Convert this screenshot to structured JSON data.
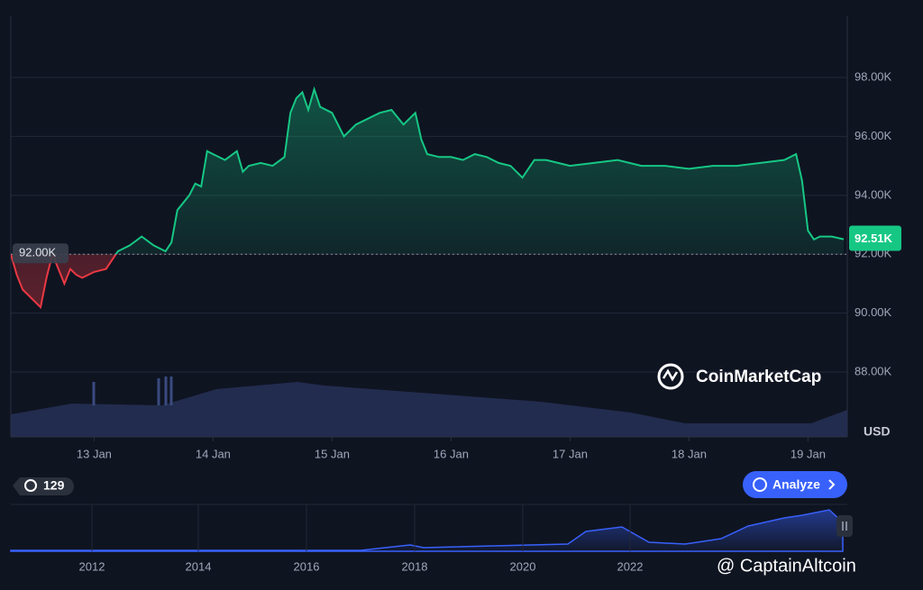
{
  "chart_data": {
    "type": "line",
    "x": [
      12.3,
      12.35,
      12.4,
      12.45,
      12.5,
      12.55,
      12.6,
      12.65,
      12.7,
      12.75,
      12.8,
      12.85,
      12.9,
      13.0,
      13.1,
      13.2,
      13.3,
      13.4,
      13.5,
      13.6,
      13.65,
      13.7,
      13.8,
      13.85,
      13.9,
      13.95,
      14.0,
      14.1,
      14.2,
      14.25,
      14.3,
      14.4,
      14.5,
      14.6,
      14.65,
      14.7,
      14.75,
      14.8,
      14.85,
      14.9,
      15.0,
      15.1,
      15.2,
      15.3,
      15.4,
      15.5,
      15.6,
      15.7,
      15.75,
      15.8,
      15.9,
      16.0,
      16.1,
      16.2,
      16.3,
      16.4,
      16.5,
      16.6,
      16.7,
      16.8,
      16.9,
      17.0,
      17.2,
      17.4,
      17.6,
      17.8,
      18.0,
      18.2,
      18.4,
      18.6,
      18.8,
      18.9,
      18.95,
      19.0,
      19.05,
      19.1,
      19.2,
      19.3
    ],
    "values": [
      92000,
      91300,
      90800,
      90600,
      90400,
      90200,
      91200,
      92000,
      91500,
      91000,
      91500,
      91300,
      91200,
      91400,
      91500,
      92100,
      92300,
      92600,
      92300,
      92100,
      92400,
      93500,
      94000,
      94400,
      94300,
      95500,
      95400,
      95200,
      95500,
      94800,
      95000,
      95100,
      95000,
      95300,
      96800,
      97300,
      97500,
      96900,
      97600,
      97000,
      96800,
      96000,
      96400,
      96600,
      96800,
      96900,
      96400,
      96800,
      95900,
      95400,
      95300,
      95300,
      95200,
      95400,
      95300,
      95100,
      95000,
      94600,
      95200,
      95200,
      95100,
      95000,
      95100,
      95200,
      95000,
      95000,
      94900,
      95000,
      95000,
      95100,
      95200,
      95400,
      94500,
      92800,
      92500,
      92600,
      92600,
      92510
    ],
    "baseline": 92000,
    "baseline_label": "92.00K",
    "current_label": "92.51K",
    "up_color": "#16c784",
    "down_color": "#ea3943",
    "xlim": [
      12.3,
      19.33
    ],
    "xticks": [
      {
        "value": 13,
        "label": "13 Jan"
      },
      {
        "value": 14,
        "label": "14 Jan"
      },
      {
        "value": 15,
        "label": "15 Jan"
      },
      {
        "value": 16,
        "label": "16 Jan"
      },
      {
        "value": 17,
        "label": "17 Jan"
      },
      {
        "value": 18,
        "label": "18 Jan"
      },
      {
        "value": 19,
        "label": "19 Jan"
      }
    ],
    "ylim": [
      85800,
      100080
    ],
    "yticks": [
      {
        "value": 88000,
        "label": "88.00K"
      },
      {
        "value": 90000,
        "label": "90.00K"
      },
      {
        "value": 92000,
        "label": "92.00K"
      },
      {
        "value": 94000,
        "label": "94.00K"
      },
      {
        "value": 96000,
        "label": "96.00K"
      },
      {
        "value": 98000,
        "label": "98.00K"
      }
    ],
    "y_unit": "USD",
    "grid": true
  },
  "ui": {
    "history_count": "129",
    "analyze": "Analyze",
    "brand": "CoinMarketCap",
    "watermark": "@ CaptainAltcoin",
    "navigator_years": [
      "2012",
      "2014",
      "2016",
      "2018",
      "2020",
      "2022"
    ]
  }
}
